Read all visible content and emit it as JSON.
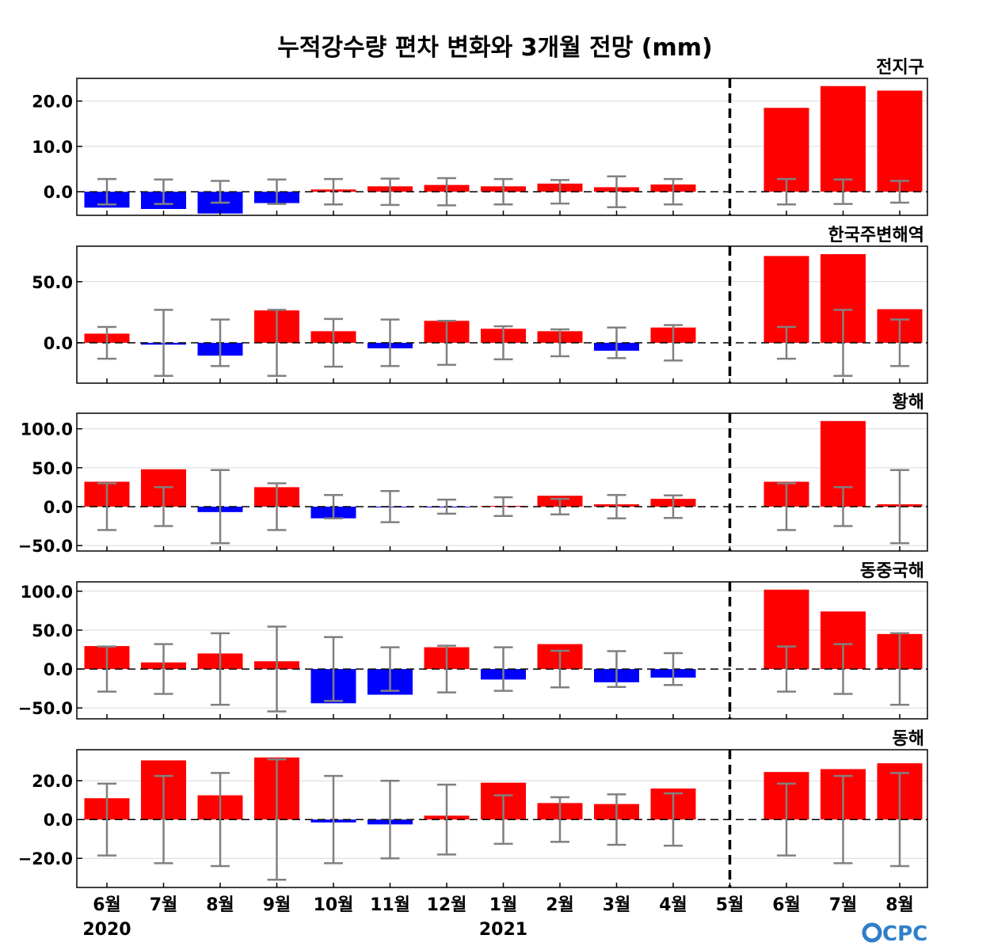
{
  "title": "누적강수량 편차 변화와 3개월 전망 (mm)",
  "logo_text": "CPC",
  "colors": {
    "positive": "#ff0000",
    "negative": "#0000ff",
    "error_bar": "#808080",
    "logo": "#2f7fc8"
  },
  "x_labels": [
    "6월",
    "7월",
    "8월",
    "9월",
    "10월",
    "11월",
    "12월",
    "1월",
    "2월",
    "3월",
    "4월",
    "5월",
    "6월",
    "7월",
    "8월"
  ],
  "year_labels": [
    {
      "index": 0,
      "text": "2020"
    },
    {
      "index": 7,
      "text": "2021"
    }
  ],
  "forecast_divider_index": 11,
  "chart_data": [
    {
      "type": "bar",
      "title": "전지구",
      "categories": [
        "6월",
        "7월",
        "8월",
        "9월",
        "10월",
        "11월",
        "12월",
        "1월",
        "2월",
        "3월",
        "4월",
        "5월",
        "6월",
        "7월",
        "8월"
      ],
      "values": [
        -3.5,
        -3.8,
        -4.8,
        -2.5,
        0.5,
        1.2,
        1.5,
        1.2,
        1.8,
        1.0,
        1.6,
        0,
        18.5,
        23.3,
        22.3
      ],
      "error_bars": [
        2.8,
        2.7,
        2.4,
        2.7,
        2.8,
        2.9,
        3.0,
        2.8,
        2.6,
        3.4,
        2.8,
        null,
        2.8,
        2.7,
        2.4
      ],
      "ylim": [
        -5.2,
        25.0
      ],
      "yticks": [
        0,
        10,
        20
      ],
      "ytick_labels": [
        "0.0",
        "10.0",
        "20.0"
      ]
    },
    {
      "type": "bar",
      "title": "한국주변해역",
      "categories": [
        "6월",
        "7월",
        "8월",
        "9월",
        "10월",
        "11월",
        "12월",
        "1월",
        "2월",
        "3월",
        "4월",
        "5월",
        "6월",
        "7월",
        "8월"
      ],
      "values": [
        7.5,
        -1.5,
        -10.5,
        26.5,
        9.5,
        -4.5,
        18.0,
        11.5,
        9.5,
        -6.5,
        12.5,
        0,
        71.0,
        72.5,
        27.5
      ],
      "error_bars": [
        13,
        27,
        19,
        27,
        19.5,
        19,
        18,
        13.5,
        11,
        12.5,
        14.5,
        null,
        13,
        27,
        19
      ],
      "ylim": [
        -33,
        79
      ],
      "yticks": [
        0,
        50
      ],
      "ytick_labels": [
        "0.0",
        "50.0"
      ]
    },
    {
      "type": "bar",
      "title": "황해",
      "categories": [
        "6월",
        "7월",
        "8월",
        "9월",
        "10월",
        "11월",
        "12월",
        "1월",
        "2월",
        "3월",
        "4월",
        "5월",
        "6월",
        "7월",
        "8월"
      ],
      "values": [
        32,
        48,
        -7,
        25,
        -15,
        -0.5,
        -1,
        1,
        14,
        3,
        10,
        0,
        32,
        110,
        3
      ],
      "error_bars": [
        30,
        25,
        47,
        30,
        15,
        20,
        9,
        12,
        10,
        15,
        14.5,
        null,
        30,
        25,
        47
      ],
      "ylim": [
        -57,
        120
      ],
      "yticks": [
        -50,
        0,
        50,
        100
      ],
      "ytick_labels": [
        "−50.0",
        "0.0",
        "50.0",
        "100.0"
      ]
    },
    {
      "type": "bar",
      "title": "동중국해",
      "categories": [
        "6월",
        "7월",
        "8월",
        "9월",
        "10월",
        "11월",
        "12월",
        "1월",
        "2월",
        "3월",
        "4월",
        "5월",
        "6월",
        "7월",
        "8월"
      ],
      "values": [
        29.5,
        8.5,
        20,
        10,
        -44,
        -33,
        28,
        -13.5,
        32,
        -17,
        -11,
        0,
        102,
        74,
        45
      ],
      "error_bars": [
        29,
        32,
        46,
        54.5,
        41,
        28,
        30,
        28,
        23.5,
        23,
        20.5,
        null,
        29,
        32,
        46
      ],
      "ylim": [
        -64,
        112
      ],
      "yticks": [
        -50,
        0,
        50,
        100
      ],
      "ytick_labels": [
        "−50.0",
        "0.0",
        "50.0",
        "100.0"
      ]
    },
    {
      "type": "bar",
      "title": "동해",
      "categories": [
        "6월",
        "7월",
        "8월",
        "9월",
        "10월",
        "11월",
        "12월",
        "1월",
        "2월",
        "3월",
        "4월",
        "5월",
        "6월",
        "7월",
        "8월"
      ],
      "values": [
        11,
        30.5,
        12.5,
        32,
        -1.5,
        -2.5,
        2,
        19,
        8.5,
        8,
        16,
        0,
        24.5,
        26,
        29
      ],
      "error_bars": [
        18.5,
        22.5,
        24,
        31,
        22.5,
        20,
        18,
        12.5,
        11.5,
        13,
        13.5,
        null,
        18.5,
        22.5,
        24
      ],
      "ylim": [
        -35,
        36
      ],
      "yticks": [
        -20,
        0,
        20
      ],
      "ytick_labels": [
        "−20.0",
        "0.0",
        "20.0"
      ]
    }
  ]
}
